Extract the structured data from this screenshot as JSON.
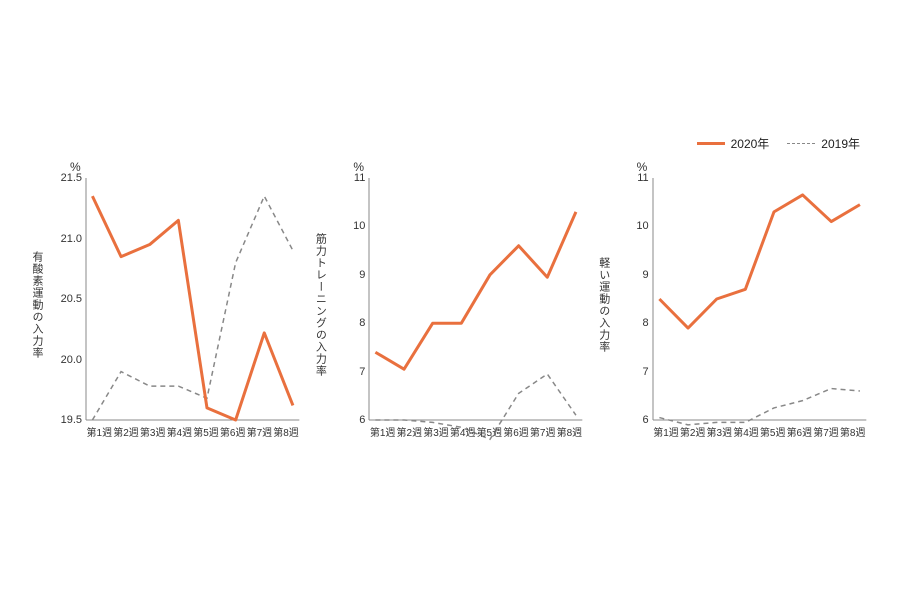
{
  "legend": {
    "series_2020": "2020年",
    "series_2019": "2019年"
  },
  "colors": {
    "series_2020": "#e9703e",
    "series_2019": "#888888",
    "axis": "#888888",
    "background": "#ffffff"
  },
  "styling": {
    "line_width_2020": 3,
    "line_width_2019": 1.5,
    "dash_2019": "5,4",
    "font_size_axis": 11,
    "font_size_vlabel": 11,
    "font_size_legend": 12
  },
  "x_categories": [
    "第1週",
    "第2週",
    "第3週",
    "第4週",
    "第5週",
    "第6週",
    "第7週",
    "第8週"
  ],
  "panels": [
    {
      "id": "aerobic",
      "type": "line",
      "vlabel": "有酸素運動の入力率",
      "yunit": "%",
      "ylim": [
        19.5,
        21.5
      ],
      "ytick_step": 0.5,
      "series": {
        "y2020": [
          21.35,
          20.85,
          20.95,
          21.15,
          19.6,
          19.5,
          20.22,
          19.62
        ],
        "y2019": [
          19.5,
          19.9,
          19.78,
          19.78,
          19.68,
          20.8,
          21.35,
          20.9
        ]
      }
    },
    {
      "id": "strength",
      "type": "line",
      "vlabel": "筋力トレーニングの入力率",
      "yunit": "%",
      "ylim": [
        6,
        11
      ],
      "ytick_step": 1,
      "series": {
        "y2020": [
          7.4,
          7.05,
          8.0,
          8.0,
          9.0,
          9.6,
          8.95,
          10.3
        ],
        "y2019": [
          6.0,
          6.0,
          5.95,
          5.85,
          5.6,
          6.55,
          6.95,
          6.1
        ]
      }
    },
    {
      "id": "light",
      "type": "line",
      "vlabel": "軽い運動の入力率",
      "yunit": "%",
      "ylim": [
        6,
        11
      ],
      "ytick_step": 1,
      "series": {
        "y2020": [
          8.5,
          7.9,
          8.5,
          8.7,
          10.3,
          10.65,
          10.1,
          10.45
        ],
        "y2019": [
          6.05,
          5.9,
          5.95,
          5.95,
          6.25,
          6.4,
          6.65,
          6.6
        ]
      }
    }
  ]
}
